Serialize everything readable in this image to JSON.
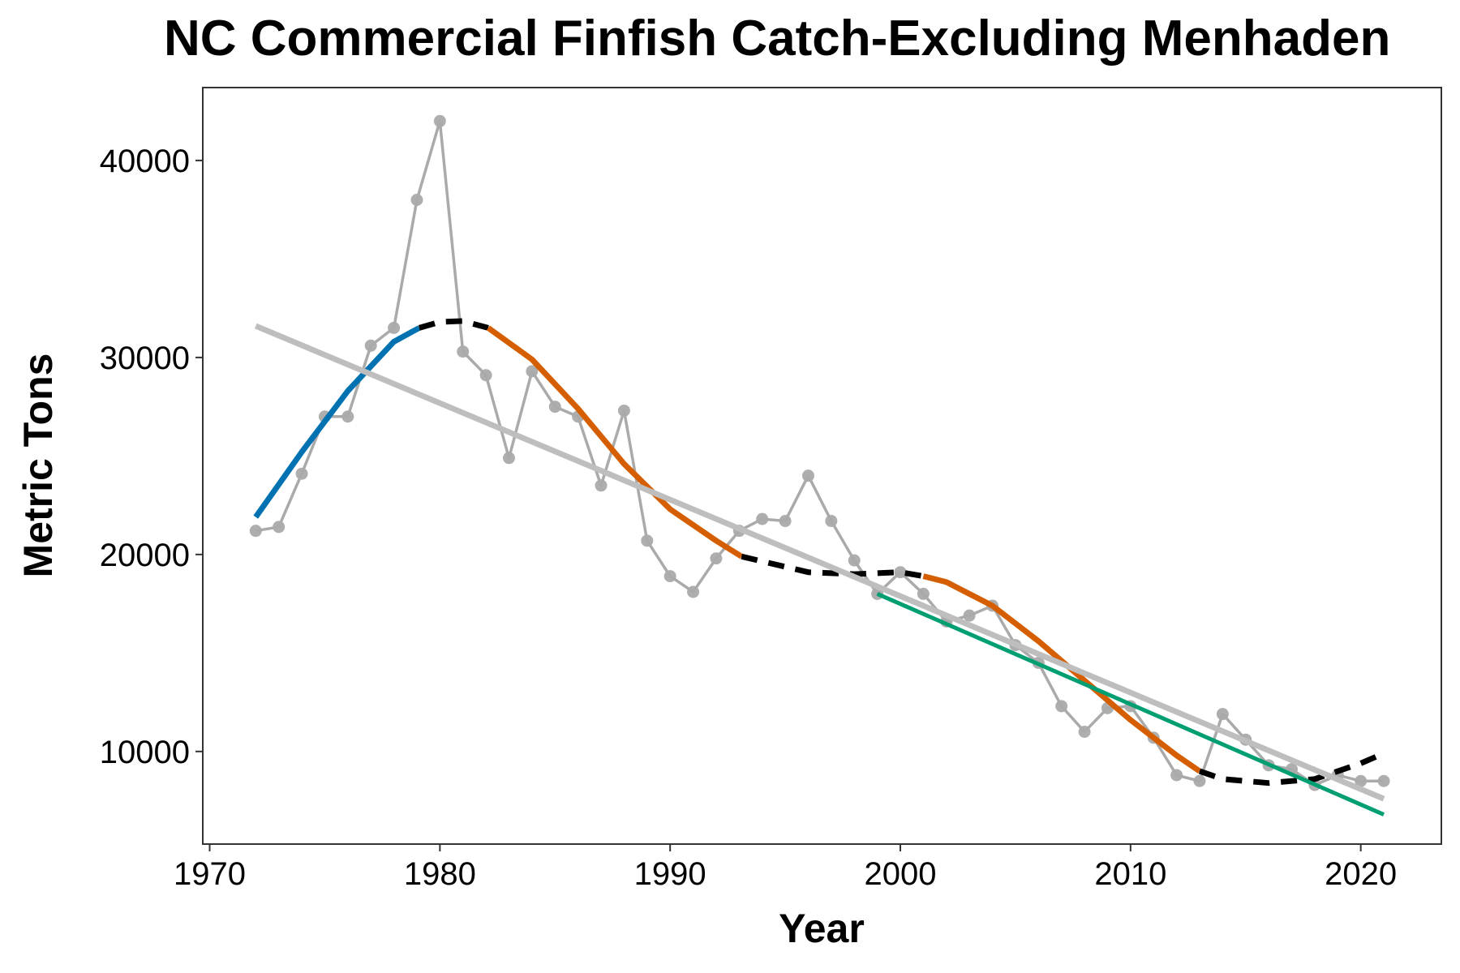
{
  "chart_data": {
    "type": "line",
    "title": "NC Commercial Finfish Catch-Excluding Menhaden",
    "xlabel": "Year",
    "ylabel": "Metric Tons",
    "xlim": [
      1969.7,
      2023.5
    ],
    "ylim": [
      5300,
      43700
    ],
    "xticks": [
      1970,
      1980,
      1990,
      2000,
      2010,
      2020
    ],
    "yticks": [
      10000,
      20000,
      30000,
      40000
    ],
    "grid": false,
    "legend": "none",
    "colors": {
      "observed": "#aaaaaa",
      "linear_trend": "#bebebe",
      "increasing": "#0072b2",
      "decreasing": "#d55e00",
      "no_trend": "#000000",
      "recent_trend": "#009e73"
    },
    "series": [
      {
        "role": "observed",
        "x": [
          1972,
          1973,
          1974,
          1975,
          1976,
          1977,
          1978,
          1979,
          1980,
          1981,
          1982,
          1983,
          1984,
          1985,
          1986,
          1987,
          1988,
          1989,
          1990,
          1991,
          1992,
          1993,
          1994,
          1995,
          1996,
          1997,
          1998,
          1999,
          2000,
          2001,
          2002,
          2003,
          2004,
          2005,
          2006,
          2007,
          2008,
          2009,
          2010,
          2011,
          2012,
          2013,
          2014,
          2015,
          2016,
          2017,
          2018,
          2019,
          2020,
          2021
        ],
        "y": [
          21200,
          21400,
          24100,
          27000,
          27000,
          30600,
          31500,
          38000,
          42000,
          30300,
          29100,
          24900,
          29300,
          27500,
          27000,
          23500,
          27300,
          20700,
          18900,
          18100,
          19800,
          21200,
          21800,
          21700,
          24000,
          21700,
          19700,
          18000,
          19100,
          18000,
          16600,
          16900,
          17400,
          15400,
          14500,
          12300,
          11000,
          12200,
          12300,
          10700,
          8800,
          8500,
          11900,
          10600,
          9300,
          9100,
          8300,
          8800,
          8500,
          8500
        ]
      },
      {
        "role": "linear_trend",
        "x": [
          1972,
          2021
        ],
        "y": [
          31600,
          7600
        ]
      },
      {
        "role": "smooth_increasing",
        "x": [
          1972,
          1974,
          1976,
          1978,
          1979.1
        ],
        "y": [
          21900,
          25200,
          28300,
          30800,
          31500
        ]
      },
      {
        "role": "smooth_no_trend",
        "x": [
          1979.1,
          1980,
          1981,
          1982.1
        ],
        "y": [
          31500,
          31800,
          31850,
          31500
        ]
      },
      {
        "role": "smooth_decreasing",
        "x": [
          1982.1,
          1984,
          1986,
          1988,
          1990,
          1992,
          1993.1
        ],
        "y": [
          31500,
          29900,
          27400,
          24600,
          22300,
          20700,
          19900
        ]
      },
      {
        "role": "smooth_no_trend",
        "x": [
          1993.1,
          1996,
          1998,
          2000,
          2001
        ],
        "y": [
          19900,
          19100,
          19000,
          19100,
          18900
        ]
      },
      {
        "role": "smooth_decreasing",
        "x": [
          2001,
          2002,
          2004,
          2006,
          2008,
          2010,
          2012,
          2013
        ],
        "y": [
          18900,
          18600,
          17400,
          15600,
          13600,
          11600,
          9800,
          9000
        ]
      },
      {
        "role": "smooth_no_trend",
        "x": [
          2013,
          2014,
          2016,
          2018,
          2020,
          2021
        ],
        "y": [
          9000,
          8600,
          8400,
          8600,
          9400,
          9900
        ]
      },
      {
        "role": "recent_trend",
        "x": [
          1999,
          2021
        ],
        "y": [
          18000,
          6800
        ]
      }
    ]
  }
}
